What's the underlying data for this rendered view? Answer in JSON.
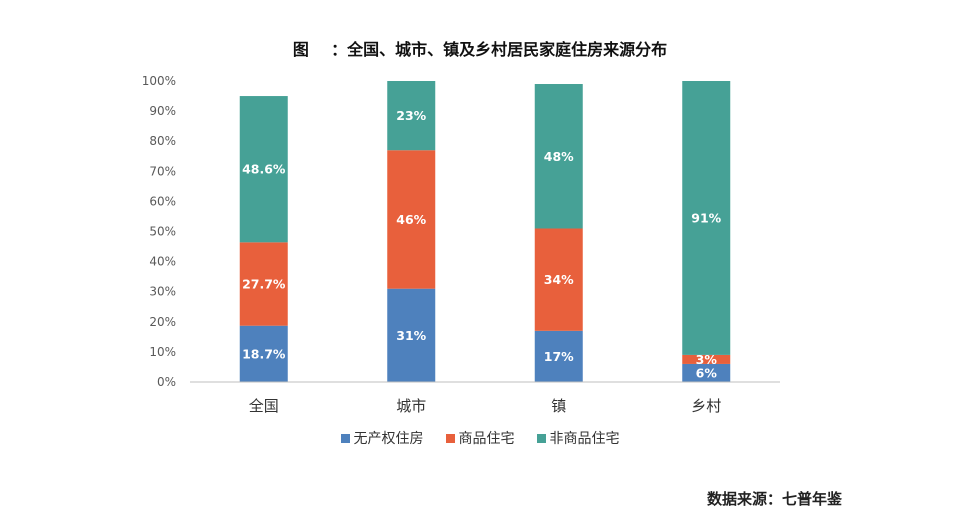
{
  "source_text": "数据来源：七普年鉴",
  "colors": {
    "no_property": "#4e81bd",
    "commercial": "#e8603c",
    "non_commercial": "#46a196",
    "axis": "#bfbfbf",
    "tick_text": "#595959",
    "label_text": "#ffffff"
  },
  "chart_data": {
    "type": "bar",
    "stacked": true,
    "title": "图    ：全国、城市、镇及乡村居民家庭住房来源分布",
    "xlabel": "",
    "ylabel": "",
    "ylim": [
      0,
      100
    ],
    "y_ticks": [
      "0%",
      "10%",
      "20%",
      "30%",
      "40%",
      "50%",
      "60%",
      "70%",
      "80%",
      "90%",
      "100%"
    ],
    "categories": [
      "全国",
      "城市",
      "镇",
      "乡村"
    ],
    "legend_position": "bottom",
    "grid": false,
    "series": [
      {
        "name": "无产权住房",
        "color_key": "no_property",
        "values": [
          18.7,
          31,
          17,
          6
        ],
        "labels": [
          "18.7%",
          "31%",
          "17%",
          "6%"
        ]
      },
      {
        "name": "商品住宅",
        "color_key": "commercial",
        "values": [
          27.7,
          46,
          34,
          3
        ],
        "labels": [
          "27.7%",
          "46%",
          "34%",
          "3%"
        ]
      },
      {
        "name": "非商品住宅",
        "color_key": "non_commercial",
        "values": [
          48.6,
          23,
          48,
          91
        ],
        "labels": [
          "48.6%",
          "23%",
          "48%",
          "91%"
        ]
      }
    ]
  }
}
